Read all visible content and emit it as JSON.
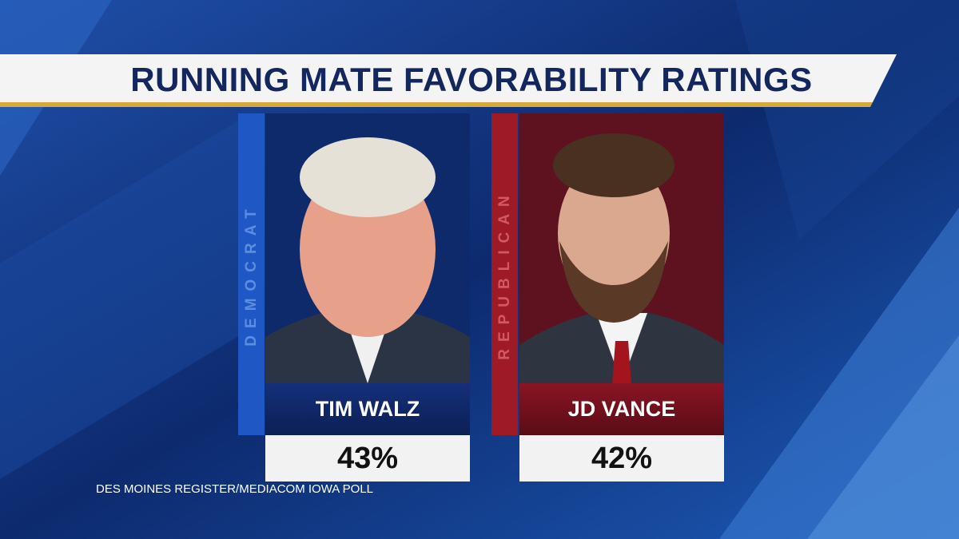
{
  "title": "RUNNING MATE FAVORABILITY RATINGS",
  "candidates": [
    {
      "party": "DEMOCRAT",
      "name": "TIM WALZ",
      "rating": "43%"
    },
    {
      "party": "REPUBLICAN",
      "name": "JD VANCE",
      "rating": "42%"
    }
  ],
  "source": "DES MOINES REGISTER/MEDIACOM IOWA POLL"
}
